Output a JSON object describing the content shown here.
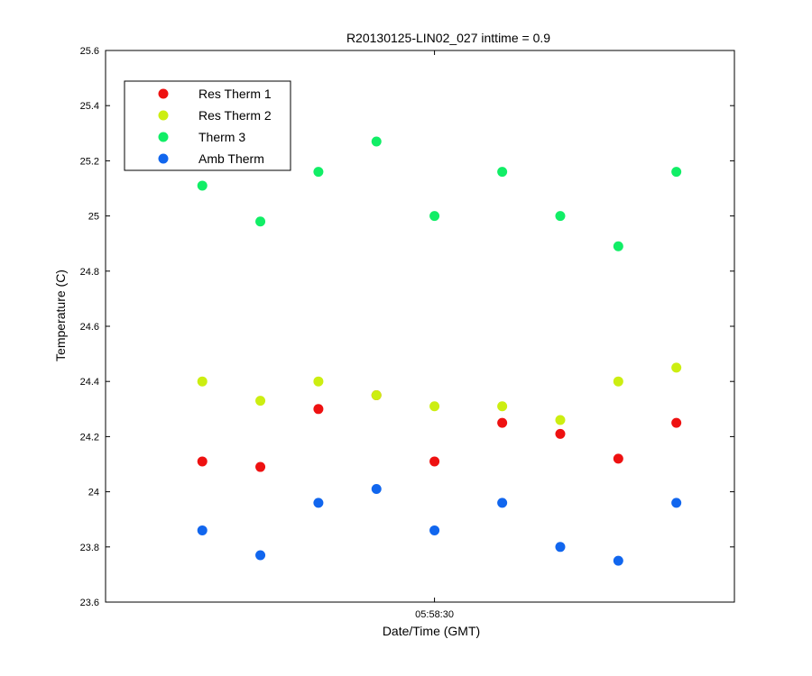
{
  "chart_data": {
    "type": "scatter",
    "title": "R20130125-LIN02_027 inttime = 0.9",
    "xlabel": "Date/Time (GMT)",
    "ylabel": "Temperature (C)",
    "ylim": [
      23.6,
      25.6
    ],
    "yticks": [
      23.6,
      23.8,
      24,
      24.2,
      24.4,
      24.6,
      24.8,
      25,
      25.2,
      25.4,
      25.6
    ],
    "ytick_labels": [
      "23.6",
      "23.8",
      "24",
      "24.2",
      "24.4",
      "24.6",
      "24.8",
      "25",
      "25.2",
      "25.4",
      "25.6"
    ],
    "xlim": [
      "05:57:56",
      "05:59:01"
    ],
    "xtick_labels": [
      "05:58:30"
    ],
    "xticks": [
      "05:58:30"
    ],
    "x": [
      "05:58:06",
      "05:58:12",
      "05:58:18",
      "05:58:24",
      "05:58:30",
      "05:58:37",
      "05:58:43",
      "05:58:49",
      "05:58:55"
    ],
    "grid": false,
    "legend_position": "top-left",
    "series": [
      {
        "name": "Res Therm 1",
        "color": "#ee1111",
        "values": [
          24.11,
          24.09,
          24.3,
          24.35,
          24.11,
          24.25,
          24.21,
          24.12,
          24.25
        ]
      },
      {
        "name": "Res Therm 2",
        "color": "#ccee11",
        "values": [
          24.4,
          24.33,
          24.4,
          24.35,
          24.31,
          24.31,
          24.26,
          24.4,
          24.45
        ]
      },
      {
        "name": "Therm 3",
        "color": "#11ee66",
        "values": [
          25.11,
          24.98,
          25.16,
          25.27,
          25.0,
          25.16,
          25.0,
          24.89,
          25.16
        ]
      },
      {
        "name": "Amb Therm",
        "color": "#1166ee",
        "values": [
          23.86,
          23.77,
          23.96,
          24.01,
          23.86,
          23.96,
          23.8,
          23.75,
          23.96
        ]
      }
    ]
  }
}
